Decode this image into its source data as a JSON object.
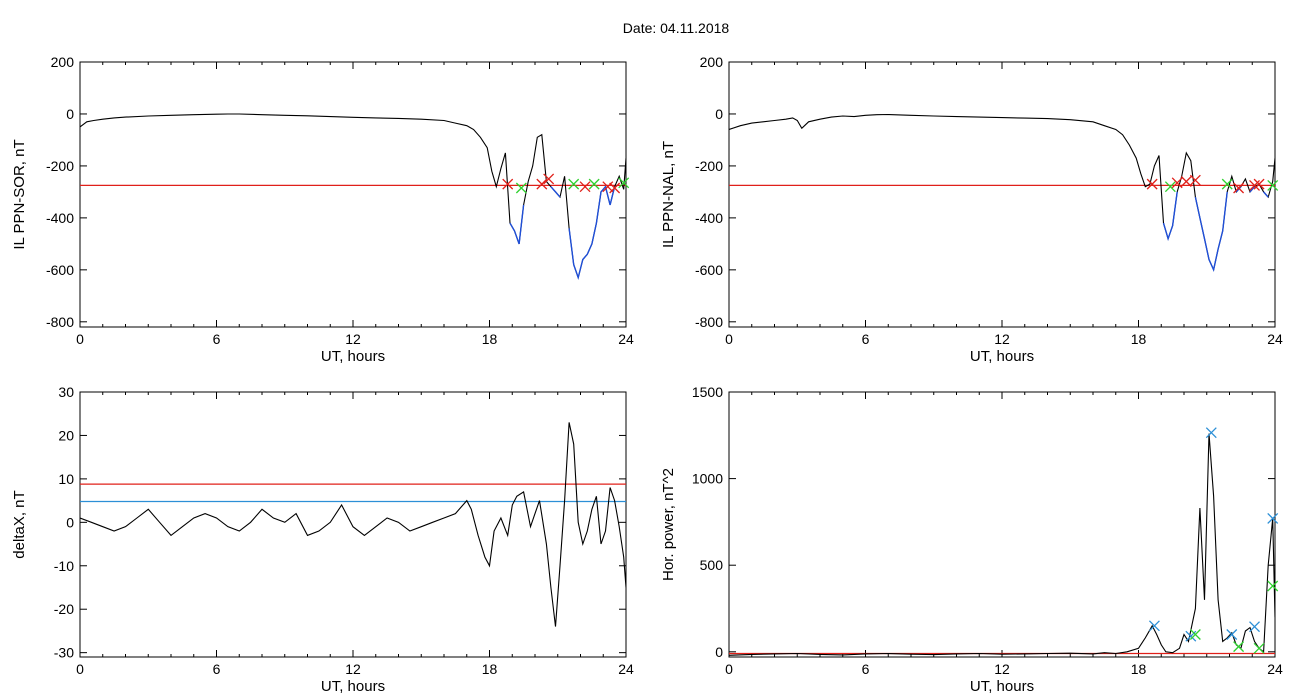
{
  "header": {
    "date_label": "Date:  04.11.2018"
  },
  "colors": {
    "frame": "#000000",
    "trace": "#000000",
    "substorm_trace": "#1f4fd8",
    "threshold_red": "#e0201a",
    "threshold_blue": "#2c8fd6",
    "marker_red": "#e0201a",
    "marker_green": "#2fd12f",
    "marker_blue": "#2c8fd6"
  },
  "chart_data": [
    {
      "id": "il-sor",
      "type": "line",
      "title": "",
      "xlabel": "UT, hours",
      "ylabel": "IL PPN-SOR, nT",
      "xlim": [
        0,
        24
      ],
      "ylim": [
        -820,
        200
      ],
      "xticks": [
        0,
        6,
        12,
        18,
        24
      ],
      "yticks": [
        -800,
        -600,
        -400,
        -200,
        0,
        200
      ],
      "threshold_lines": [
        {
          "y": -275,
          "color": "red"
        }
      ],
      "series": [
        {
          "x": [
            0,
            0.3,
            0.6,
            1,
            1.5,
            2,
            3,
            4,
            5,
            6,
            6.5,
            7,
            8,
            9,
            10,
            11,
            12,
            13,
            14,
            15,
            16,
            16.5,
            17,
            17.3,
            17.6,
            17.9,
            18.1,
            18.3,
            18.5,
            18.7,
            18.9,
            19.1,
            19.3,
            19.5,
            19.7,
            19.9,
            20.1,
            20.3,
            20.5,
            20.7,
            20.9,
            21.1,
            21.3,
            21.5,
            21.7,
            21.9,
            22.1,
            22.3,
            22.5,
            22.7,
            22.9,
            23.1,
            23.3,
            23.5,
            23.7,
            23.9,
            24
          ],
          "y": [
            -50,
            -30,
            -25,
            -20,
            -15,
            -12,
            -8,
            -5,
            -3,
            -1,
            0,
            0,
            -3,
            -5,
            -7,
            -10,
            -13,
            -15,
            -17,
            -20,
            -25,
            -35,
            -45,
            -60,
            -90,
            -130,
            -220,
            -280,
            -210,
            -150,
            -420,
            -450,
            -500,
            -350,
            -260,
            -200,
            -90,
            -80,
            -260,
            -280,
            -300,
            -320,
            -240,
            -440,
            -580,
            -630,
            -560,
            -540,
            -500,
            -420,
            -300,
            -280,
            -350,
            -280,
            -240,
            -290,
            -170
          ],
          "substorm_range": [
            18.7,
            24
          ]
        }
      ],
      "markers": [
        {
          "x": 18.8,
          "y": -270,
          "color": "red"
        },
        {
          "x": 19.4,
          "y": -285,
          "color": "green"
        },
        {
          "x": 20.3,
          "y": -270,
          "color": "red"
        },
        {
          "x": 20.6,
          "y": -250,
          "color": "red"
        },
        {
          "x": 21.7,
          "y": -270,
          "color": "green"
        },
        {
          "x": 22.2,
          "y": -280,
          "color": "red"
        },
        {
          "x": 22.6,
          "y": -270,
          "color": "green"
        },
        {
          "x": 23.2,
          "y": -280,
          "color": "red"
        },
        {
          "x": 23.5,
          "y": -285,
          "color": "red"
        },
        {
          "x": 23.9,
          "y": -265,
          "color": "green"
        }
      ]
    },
    {
      "id": "il-nal",
      "type": "line",
      "title": "",
      "xlabel": "UT, hours",
      "ylabel": "IL PPN-NAL, nT",
      "xlim": [
        0,
        24
      ],
      "ylim": [
        -820,
        200
      ],
      "xticks": [
        0,
        6,
        12,
        18,
        24
      ],
      "yticks": [
        -800,
        -600,
        -400,
        -200,
        0,
        200
      ],
      "threshold_lines": [
        {
          "y": -275,
          "color": "red"
        }
      ],
      "series": [
        {
          "x": [
            0,
            0.5,
            1,
            1.5,
            2,
            2.5,
            2.8,
            3,
            3.2,
            3.5,
            4,
            4.5,
            5,
            5.5,
            6,
            6.5,
            7,
            8,
            9,
            10,
            11,
            12,
            13,
            14,
            15,
            16,
            16.5,
            17,
            17.3,
            17.6,
            17.9,
            18.1,
            18.3,
            18.5,
            18.7,
            18.9,
            19.1,
            19.3,
            19.5,
            19.7,
            19.9,
            20.1,
            20.3,
            20.5,
            20.7,
            20.9,
            21.1,
            21.3,
            21.5,
            21.7,
            21.9,
            22.1,
            22.3,
            22.5,
            22.7,
            22.9,
            23.1,
            23.3,
            23.5,
            23.7,
            23.9,
            24
          ],
          "y": [
            -60,
            -45,
            -35,
            -30,
            -25,
            -20,
            -15,
            -25,
            -55,
            -30,
            -20,
            -12,
            -8,
            -10,
            -5,
            -3,
            -2,
            -5,
            -8,
            -10,
            -12,
            -14,
            -16,
            -18,
            -22,
            -30,
            -45,
            -60,
            -80,
            -120,
            -170,
            -230,
            -280,
            -270,
            -200,
            -160,
            -420,
            -480,
            -430,
            -300,
            -240,
            -150,
            -180,
            -320,
            -400,
            -480,
            -560,
            -600,
            -520,
            -450,
            -300,
            -240,
            -300,
            -280,
            -250,
            -300,
            -280,
            -270,
            -300,
            -320,
            -260,
            -170
          ],
          "substorm_range": [
            18.7,
            24
          ]
        }
      ],
      "markers": [
        {
          "x": 18.6,
          "y": -270,
          "color": "red"
        },
        {
          "x": 19.4,
          "y": -280,
          "color": "green"
        },
        {
          "x": 19.7,
          "y": -265,
          "color": "red"
        },
        {
          "x": 20.1,
          "y": -260,
          "color": "red"
        },
        {
          "x": 20.5,
          "y": -255,
          "color": "red"
        },
        {
          "x": 21.9,
          "y": -270,
          "color": "green"
        },
        {
          "x": 22.4,
          "y": -285,
          "color": "red"
        },
        {
          "x": 23.1,
          "y": -275,
          "color": "red"
        },
        {
          "x": 23.3,
          "y": -270,
          "color": "red"
        },
        {
          "x": 23.9,
          "y": -275,
          "color": "green"
        }
      ]
    },
    {
      "id": "deltax",
      "type": "line",
      "title": "",
      "xlabel": "UT, hours",
      "ylabel": "deltaX, nT",
      "xlim": [
        0,
        24
      ],
      "ylim": [
        -31,
        30
      ],
      "xticks": [
        0,
        6,
        12,
        18,
        24
      ],
      "yticks": [
        -30,
        -20,
        -10,
        0,
        10,
        20,
        30
      ],
      "threshold_lines": [
        {
          "y": 8.8,
          "color": "red"
        },
        {
          "y": 4.8,
          "color": "blue"
        }
      ],
      "series": [
        {
          "x": [
            0,
            0.5,
            1,
            1.5,
            2,
            2.5,
            3,
            3.5,
            4,
            4.5,
            5,
            5.5,
            6,
            6.5,
            7,
            7.5,
            8,
            8.5,
            9,
            9.5,
            10,
            10.5,
            11,
            11.5,
            12,
            12.5,
            13,
            13.5,
            14,
            14.5,
            15,
            15.5,
            16,
            16.5,
            17,
            17.2,
            17.5,
            17.8,
            18,
            18.2,
            18.5,
            18.8,
            19,
            19.2,
            19.5,
            19.8,
            20,
            20.2,
            20.5,
            20.7,
            20.9,
            21.1,
            21.3,
            21.5,
            21.7,
            21.9,
            22.1,
            22.3,
            22.5,
            22.7,
            22.9,
            23.1,
            23.3,
            23.5,
            23.7,
            23.9,
            24
          ],
          "y": [
            1,
            0,
            -1,
            -2,
            -1,
            1,
            3,
            0,
            -3,
            -1,
            1,
            2,
            1,
            -1,
            -2,
            0,
            3,
            1,
            0,
            2,
            -3,
            -2,
            0,
            4,
            -1,
            -3,
            -1,
            1,
            0,
            -2,
            -1,
            0,
            1,
            2,
            5,
            3,
            -3,
            -8,
            -10,
            -2,
            1,
            -3,
            4,
            6,
            7,
            -1,
            2,
            5,
            -5,
            -15,
            -24,
            -10,
            5,
            23,
            18,
            0,
            -5,
            -2,
            3,
            6,
            -5,
            -2,
            8,
            5,
            -1,
            -8,
            -15
          ],
          "substorm_range": null
        }
      ],
      "markers": []
    },
    {
      "id": "hor-power",
      "type": "line",
      "title": "",
      "xlabel": "UT, hours",
      "ylabel": "Hor. power, nT^2",
      "xlim": [
        0,
        24
      ],
      "ylim": [
        -30,
        1500
      ],
      "xticks": [
        0,
        6,
        12,
        18,
        24
      ],
      "yticks": [
        0,
        500,
        1000,
        1500
      ],
      "threshold_lines": [
        {
          "y": -10,
          "color": "red"
        }
      ],
      "series": [
        {
          "x": [
            0,
            1,
            2,
            3,
            4,
            5,
            6,
            7,
            8,
            9,
            10,
            11,
            12,
            13,
            14,
            15,
            16,
            16.5,
            17,
            17.5,
            18,
            18.3,
            18.6,
            18.8,
            19,
            19.2,
            19.5,
            19.8,
            20,
            20.2,
            20.5,
            20.7,
            20.9,
            21.1,
            21.3,
            21.5,
            21.7,
            21.9,
            22.1,
            22.3,
            22.5,
            22.7,
            22.9,
            23.1,
            23.3,
            23.5,
            23.7,
            23.9,
            24
          ],
          "y": [
            -20,
            -15,
            -12,
            -10,
            -15,
            -18,
            -12,
            -10,
            -14,
            -16,
            -12,
            -10,
            -14,
            -12,
            -10,
            -8,
            -12,
            -5,
            -10,
            0,
            20,
            80,
            150,
            100,
            40,
            0,
            -5,
            20,
            100,
            60,
            250,
            830,
            300,
            1260,
            900,
            300,
            60,
            80,
            110,
            40,
            20,
            120,
            140,
            60,
            20,
            0,
            500,
            770,
            200
          ],
          "substorm_range": null
        }
      ],
      "markers": [
        {
          "x": 18.7,
          "y": 150,
          "color": "blue"
        },
        {
          "x": 20.3,
          "y": 90,
          "color": "blue"
        },
        {
          "x": 20.5,
          "y": 100,
          "color": "green"
        },
        {
          "x": 21.2,
          "y": 1265,
          "color": "blue"
        },
        {
          "x": 22.1,
          "y": 100,
          "color": "blue"
        },
        {
          "x": 22.4,
          "y": 30,
          "color": "green"
        },
        {
          "x": 23.1,
          "y": 145,
          "color": "blue"
        },
        {
          "x": 23.3,
          "y": 20,
          "color": "green"
        },
        {
          "x": 23.9,
          "y": 770,
          "color": "blue"
        },
        {
          "x": 23.9,
          "y": 380,
          "color": "green"
        }
      ]
    }
  ]
}
